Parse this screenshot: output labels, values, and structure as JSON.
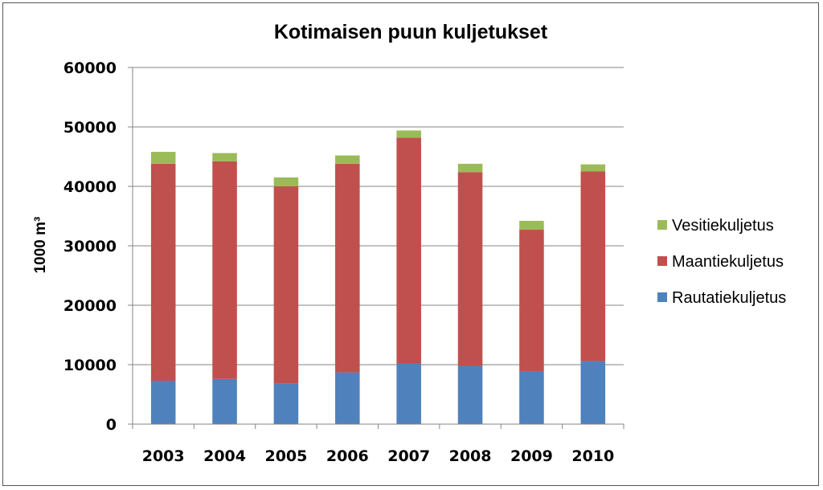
{
  "chart_data": {
    "type": "bar",
    "stacked": true,
    "title": "Kotimaisen puun kuljetukset",
    "xlabel": "",
    "ylabel": "1000 m³",
    "ylim": [
      0,
      60000
    ],
    "yticks": [
      "0",
      "10000",
      "20000",
      "30000",
      "40000",
      "50000",
      "60000"
    ],
    "categories": [
      "2003",
      "2004",
      "2005",
      "2006",
      "2007",
      "2008",
      "2009",
      "2010"
    ],
    "series": [
      {
        "name": "Rautatiekuljetus",
        "color": "#4f81bd",
        "values": [
          7300,
          7600,
          6800,
          8700,
          10200,
          9800,
          8800,
          10600
        ]
      },
      {
        "name": "Maantiekuljetus",
        "color": "#c0504d",
        "values": [
          36500,
          36600,
          33200,
          35100,
          38000,
          32600,
          23900,
          31900
        ]
      },
      {
        "name": "Vesitiekuljetus",
        "color": "#9bbb59",
        "values": [
          2000,
          1400,
          1500,
          1400,
          1200,
          1400,
          1500,
          1200
        ]
      }
    ],
    "legend": {
      "position": "right",
      "order": [
        "Vesitiekuljetus",
        "Maantiekuljetus",
        "Rautatiekuljetus"
      ]
    },
    "grid": true,
    "gridColor": "#868686",
    "axisColor": "#868686"
  }
}
